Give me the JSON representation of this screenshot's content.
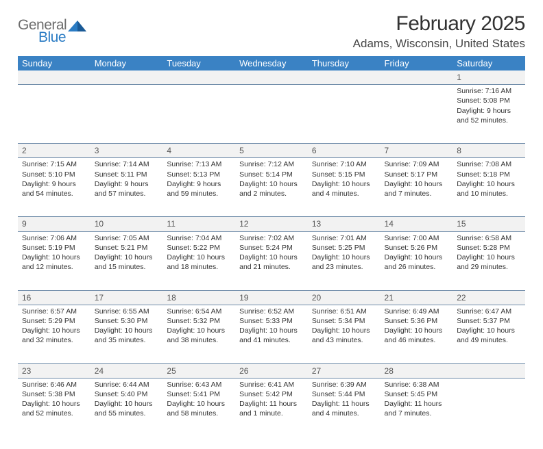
{
  "brand": {
    "word1": "General",
    "word2": "Blue"
  },
  "title": "February 2025",
  "location": "Adams, Wisconsin, United States",
  "colors": {
    "header_bg": "#3a82c4",
    "header_text": "#ffffff",
    "daynum_bg": "#f2f2f2",
    "rule": "#6d8aa8",
    "logo_gray": "#6d6d6d",
    "logo_blue": "#2b7cc4"
  },
  "weekdays": [
    "Sunday",
    "Monday",
    "Tuesday",
    "Wednesday",
    "Thursday",
    "Friday",
    "Saturday"
  ],
  "weeks": [
    [
      null,
      null,
      null,
      null,
      null,
      null,
      {
        "n": "1",
        "sunrise": "Sunrise: 7:16 AM",
        "sunset": "Sunset: 5:08 PM",
        "day1": "Daylight: 9 hours",
        "day2": "and 52 minutes."
      }
    ],
    [
      {
        "n": "2",
        "sunrise": "Sunrise: 7:15 AM",
        "sunset": "Sunset: 5:10 PM",
        "day1": "Daylight: 9 hours",
        "day2": "and 54 minutes."
      },
      {
        "n": "3",
        "sunrise": "Sunrise: 7:14 AM",
        "sunset": "Sunset: 5:11 PM",
        "day1": "Daylight: 9 hours",
        "day2": "and 57 minutes."
      },
      {
        "n": "4",
        "sunrise": "Sunrise: 7:13 AM",
        "sunset": "Sunset: 5:13 PM",
        "day1": "Daylight: 9 hours",
        "day2": "and 59 minutes."
      },
      {
        "n": "5",
        "sunrise": "Sunrise: 7:12 AM",
        "sunset": "Sunset: 5:14 PM",
        "day1": "Daylight: 10 hours",
        "day2": "and 2 minutes."
      },
      {
        "n": "6",
        "sunrise": "Sunrise: 7:10 AM",
        "sunset": "Sunset: 5:15 PM",
        "day1": "Daylight: 10 hours",
        "day2": "and 4 minutes."
      },
      {
        "n": "7",
        "sunrise": "Sunrise: 7:09 AM",
        "sunset": "Sunset: 5:17 PM",
        "day1": "Daylight: 10 hours",
        "day2": "and 7 minutes."
      },
      {
        "n": "8",
        "sunrise": "Sunrise: 7:08 AM",
        "sunset": "Sunset: 5:18 PM",
        "day1": "Daylight: 10 hours",
        "day2": "and 10 minutes."
      }
    ],
    [
      {
        "n": "9",
        "sunrise": "Sunrise: 7:06 AM",
        "sunset": "Sunset: 5:19 PM",
        "day1": "Daylight: 10 hours",
        "day2": "and 12 minutes."
      },
      {
        "n": "10",
        "sunrise": "Sunrise: 7:05 AM",
        "sunset": "Sunset: 5:21 PM",
        "day1": "Daylight: 10 hours",
        "day2": "and 15 minutes."
      },
      {
        "n": "11",
        "sunrise": "Sunrise: 7:04 AM",
        "sunset": "Sunset: 5:22 PM",
        "day1": "Daylight: 10 hours",
        "day2": "and 18 minutes."
      },
      {
        "n": "12",
        "sunrise": "Sunrise: 7:02 AM",
        "sunset": "Sunset: 5:24 PM",
        "day1": "Daylight: 10 hours",
        "day2": "and 21 minutes."
      },
      {
        "n": "13",
        "sunrise": "Sunrise: 7:01 AM",
        "sunset": "Sunset: 5:25 PM",
        "day1": "Daylight: 10 hours",
        "day2": "and 23 minutes."
      },
      {
        "n": "14",
        "sunrise": "Sunrise: 7:00 AM",
        "sunset": "Sunset: 5:26 PM",
        "day1": "Daylight: 10 hours",
        "day2": "and 26 minutes."
      },
      {
        "n": "15",
        "sunrise": "Sunrise: 6:58 AM",
        "sunset": "Sunset: 5:28 PM",
        "day1": "Daylight: 10 hours",
        "day2": "and 29 minutes."
      }
    ],
    [
      {
        "n": "16",
        "sunrise": "Sunrise: 6:57 AM",
        "sunset": "Sunset: 5:29 PM",
        "day1": "Daylight: 10 hours",
        "day2": "and 32 minutes."
      },
      {
        "n": "17",
        "sunrise": "Sunrise: 6:55 AM",
        "sunset": "Sunset: 5:30 PM",
        "day1": "Daylight: 10 hours",
        "day2": "and 35 minutes."
      },
      {
        "n": "18",
        "sunrise": "Sunrise: 6:54 AM",
        "sunset": "Sunset: 5:32 PM",
        "day1": "Daylight: 10 hours",
        "day2": "and 38 minutes."
      },
      {
        "n": "19",
        "sunrise": "Sunrise: 6:52 AM",
        "sunset": "Sunset: 5:33 PM",
        "day1": "Daylight: 10 hours",
        "day2": "and 41 minutes."
      },
      {
        "n": "20",
        "sunrise": "Sunrise: 6:51 AM",
        "sunset": "Sunset: 5:34 PM",
        "day1": "Daylight: 10 hours",
        "day2": "and 43 minutes."
      },
      {
        "n": "21",
        "sunrise": "Sunrise: 6:49 AM",
        "sunset": "Sunset: 5:36 PM",
        "day1": "Daylight: 10 hours",
        "day2": "and 46 minutes."
      },
      {
        "n": "22",
        "sunrise": "Sunrise: 6:47 AM",
        "sunset": "Sunset: 5:37 PM",
        "day1": "Daylight: 10 hours",
        "day2": "and 49 minutes."
      }
    ],
    [
      {
        "n": "23",
        "sunrise": "Sunrise: 6:46 AM",
        "sunset": "Sunset: 5:38 PM",
        "day1": "Daylight: 10 hours",
        "day2": "and 52 minutes."
      },
      {
        "n": "24",
        "sunrise": "Sunrise: 6:44 AM",
        "sunset": "Sunset: 5:40 PM",
        "day1": "Daylight: 10 hours",
        "day2": "and 55 minutes."
      },
      {
        "n": "25",
        "sunrise": "Sunrise: 6:43 AM",
        "sunset": "Sunset: 5:41 PM",
        "day1": "Daylight: 10 hours",
        "day2": "and 58 minutes."
      },
      {
        "n": "26",
        "sunrise": "Sunrise: 6:41 AM",
        "sunset": "Sunset: 5:42 PM",
        "day1": "Daylight: 11 hours",
        "day2": "and 1 minute."
      },
      {
        "n": "27",
        "sunrise": "Sunrise: 6:39 AM",
        "sunset": "Sunset: 5:44 PM",
        "day1": "Daylight: 11 hours",
        "day2": "and 4 minutes."
      },
      {
        "n": "28",
        "sunrise": "Sunrise: 6:38 AM",
        "sunset": "Sunset: 5:45 PM",
        "day1": "Daylight: 11 hours",
        "day2": "and 7 minutes."
      },
      null
    ]
  ]
}
